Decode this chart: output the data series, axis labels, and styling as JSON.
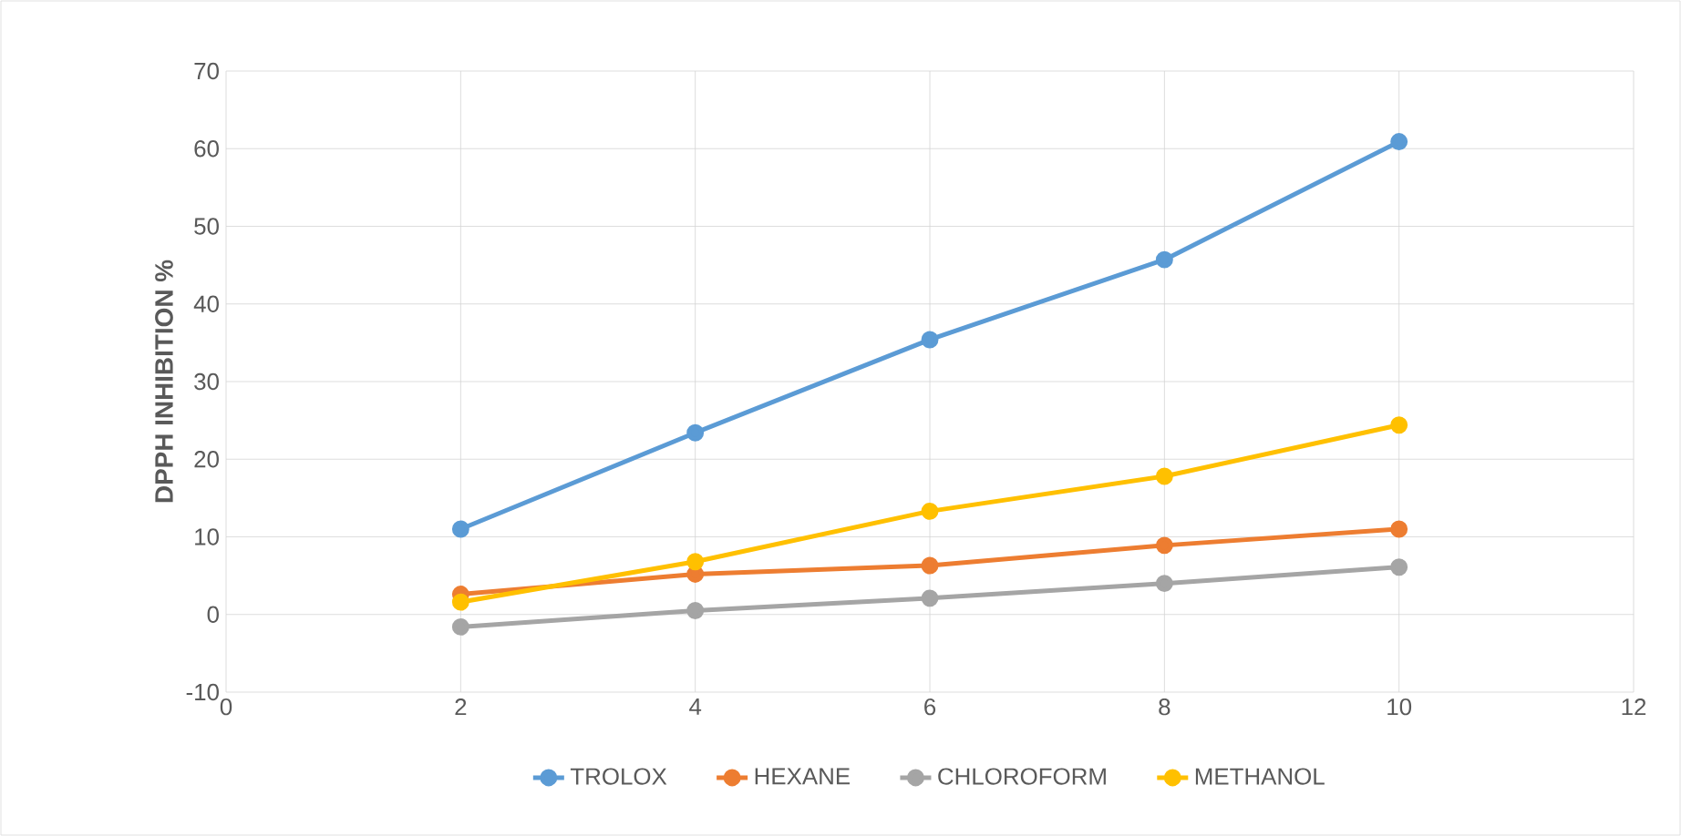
{
  "chart_data": {
    "type": "line",
    "ylabel": "DPPH INHIBITION %",
    "x": [
      2,
      4,
      6,
      8,
      10
    ],
    "series": [
      {
        "name": "TROLOX",
        "color": "#5b9bd5",
        "values": [
          11.0,
          23.4,
          35.4,
          45.7,
          60.9
        ]
      },
      {
        "name": "HEXANE",
        "color": "#ed7d31",
        "values": [
          2.6,
          5.2,
          6.3,
          8.9,
          11.0
        ]
      },
      {
        "name": "CHLOROFORM",
        "color": "#a5a5a5",
        "values": [
          -1.6,
          0.5,
          2.1,
          4.0,
          6.1
        ]
      },
      {
        "name": "METHANOL",
        "color": "#ffc000",
        "values": [
          1.6,
          6.8,
          13.3,
          17.8,
          24.4
        ]
      }
    ],
    "xlim": [
      0,
      12
    ],
    "xticks": [
      0,
      2,
      4,
      6,
      8,
      10,
      12
    ],
    "ylim": [
      -10,
      70
    ],
    "yticks": [
      -10,
      0,
      10,
      20,
      30,
      40,
      50,
      60,
      70
    ],
    "grid": true,
    "legend": "bottom",
    "marker": "circle",
    "line_style": "solid"
  }
}
